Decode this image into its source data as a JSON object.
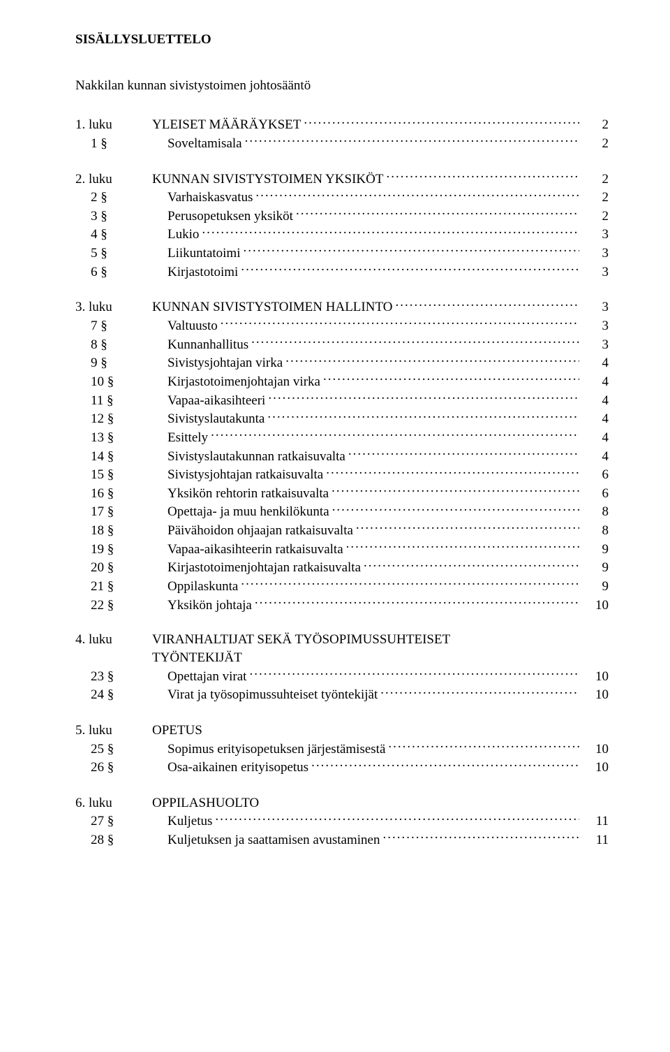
{
  "title": "SISÄLLYSLUETTELO",
  "subtitle": "Nakkilan kunnan sivistystoimen johtosääntö",
  "sections": [
    {
      "chapter": {
        "num": "1. luku",
        "label": "YLEISET MÄÄRÄYKSET",
        "page": "2"
      },
      "items": [
        {
          "num": "1 §",
          "label": "Soveltamisala",
          "page": "2"
        }
      ]
    },
    {
      "chapter": {
        "num": "2. luku",
        "label": "KUNNAN SIVISTYSTOIMEN YKSIKÖT",
        "page": "2"
      },
      "items": [
        {
          "num": "2 §",
          "label": "Varhaiskasvatus",
          "page": "2"
        },
        {
          "num": "3 §",
          "label": "Perusopetuksen yksiköt",
          "page": "2"
        },
        {
          "num": "4 §",
          "label": "Lukio",
          "page": "3"
        },
        {
          "num": "5 §",
          "label": "Liikuntatoimi",
          "page": "3"
        },
        {
          "num": "6 §",
          "label": "Kirjastotoimi",
          "page": "3"
        }
      ]
    },
    {
      "chapter": {
        "num": "3. luku",
        "label": "KUNNAN SIVISTYSTOIMEN HALLINTO",
        "page": "3"
      },
      "items": [
        {
          "num": "7 §",
          "label": "Valtuusto",
          "page": "3"
        },
        {
          "num": "8 §",
          "label": "Kunnanhallitus",
          "page": "3"
        },
        {
          "num": "9 §",
          "label": "Sivistysjohtajan virka",
          "page": "4"
        },
        {
          "num": "10 §",
          "label": "Kirjastotoimenjohtajan virka",
          "page": "4"
        },
        {
          "num": "11 §",
          "label": "Vapaa-aikasihteeri",
          "page": "4"
        },
        {
          "num": "12 §",
          "label": "Sivistyslautakunta",
          "page": "4"
        },
        {
          "num": "13 §",
          "label": "Esittely",
          "page": "4"
        },
        {
          "num": "14 §",
          "label": "Sivistyslautakunnan ratkaisuvalta",
          "page": "4"
        },
        {
          "num": "15 §",
          "label": "Sivistysjohtajan ratkaisuvalta",
          "page": "6"
        },
        {
          "num": "16 §",
          "label": "Yksikön rehtorin ratkaisuvalta",
          "page": "6"
        },
        {
          "num": "17 §",
          "label": "Opettaja- ja muu henkilökunta",
          "page": "8"
        },
        {
          "num": "18 §",
          "label": "Päivähoidon ohjaajan ratkaisuvalta",
          "page": "8"
        },
        {
          "num": "19 §",
          "label": "Vapaa-aikasihteerin ratkaisuvalta",
          "page": "9"
        },
        {
          "num": "20 §",
          "label": "Kirjastotoimenjohtajan ratkaisuvalta",
          "page": "9"
        },
        {
          "num": "21 §",
          "label": "Oppilaskunta",
          "page": "9"
        },
        {
          "num": "22 §",
          "label": "Yksikön johtaja",
          "page": "10"
        }
      ]
    },
    {
      "chapter": {
        "num": "4. luku",
        "label": "VIRANHALTIJAT SEKÄ TYÖSOPIMUSSUHTEISET TYÖNTEKIJÄT",
        "page": "",
        "nodots": true
      },
      "items": [
        {
          "num": "23 §",
          "label": "Opettajan virat",
          "page": "10"
        },
        {
          "num": "24 §",
          "label": "Virat ja työsopimussuhteiset työntekijät",
          "page": "10"
        }
      ]
    },
    {
      "chapter": {
        "num": "5. luku",
        "label": "OPETUS",
        "page": "",
        "nodots": true
      },
      "items": [
        {
          "num": "25 §",
          "label": "Sopimus erityisopetuksen järjestämisestä",
          "page": "10"
        },
        {
          "num": "26 §",
          "label": "Osa-aikainen erityisopetus",
          "page": "10"
        }
      ]
    },
    {
      "chapter": {
        "num": "6. luku",
        "label": "OPPILASHUOLTO",
        "page": "",
        "nodots": true
      },
      "items": [
        {
          "num": "27 §",
          "label": "Kuljetus",
          "page": "11"
        },
        {
          "num": "28 §",
          "label": "Kuljetuksen ja saattamisen avustaminen",
          "page": "11"
        }
      ]
    }
  ]
}
